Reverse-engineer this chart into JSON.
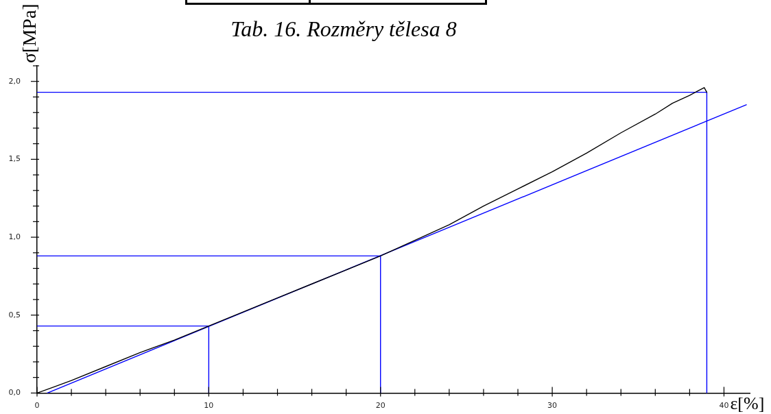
{
  "chart_data": {
    "type": "line",
    "ylabel": "σ[MPa]",
    "xlabel": "ε[%]",
    "annotations": [
      "Tab. 16. Rozměry tělesa 8"
    ],
    "xlim": [
      0,
      41.5
    ],
    "xticks": [
      0,
      {
        "value": 2,
        "label": null
      },
      {
        "value": 4,
        "label": null
      },
      {
        "value": 6,
        "label": null
      },
      {
        "value": 8,
        "label": null
      },
      10,
      {
        "value": 12,
        "label": null
      },
      {
        "value": 14,
        "label": null
      },
      {
        "value": 16,
        "label": null
      },
      {
        "value": 18,
        "label": null
      },
      20,
      {
        "value": 22,
        "label": null
      },
      {
        "value": 24,
        "label": null
      },
      {
        "value": 26,
        "label": null
      },
      {
        "value": 28,
        "label": null
      },
      30,
      {
        "value": 32,
        "label": null
      },
      {
        "value": 34,
        "label": null
      },
      {
        "value": 36,
        "label": null
      },
      {
        "value": 38,
        "label": null
      },
      40
    ],
    "ylim": [
      0,
      2.1
    ],
    "yticks": [
      {
        "value": 0,
        "label": "0,0"
      },
      {
        "value": 0.1,
        "label": null
      },
      {
        "value": 0.2,
        "label": null
      },
      {
        "value": 0.3,
        "label": null
      },
      {
        "value": 0.4,
        "label": null
      },
      {
        "value": 0.5,
        "label": "0,5"
      },
      {
        "value": 0.6,
        "label": null
      },
      {
        "value": 0.7,
        "label": null
      },
      {
        "value": 0.8,
        "label": null
      },
      {
        "value": 0.9,
        "label": null
      },
      {
        "value": 1,
        "label": "1,0"
      },
      {
        "value": 1.1,
        "label": null
      },
      {
        "value": 1.2,
        "label": null
      },
      {
        "value": 1.3,
        "label": null
      },
      {
        "value": 1.4,
        "label": null
      },
      {
        "value": 1.5,
        "label": "1,5"
      },
      {
        "value": 1.6,
        "label": null
      },
      {
        "value": 1.7,
        "label": null
      },
      {
        "value": 1.8,
        "label": null
      },
      {
        "value": 1.9,
        "label": null
      },
      {
        "value": 2,
        "label": "2,0"
      },
      {
        "value": 2.1,
        "label": null
      }
    ],
    "grid": false,
    "legend": false,
    "series": [
      {
        "color": "#000000",
        "x": [
          0,
          1,
          2,
          4,
          6,
          8,
          10,
          12,
          14,
          16,
          18,
          20,
          22,
          24,
          26,
          28,
          30,
          32,
          34,
          36,
          37,
          38,
          38.5,
          38.85,
          39
        ],
        "values": [
          0,
          0.04,
          0.08,
          0.17,
          0.26,
          0.34,
          0.43,
          0.52,
          0.61,
          0.7,
          0.79,
          0.88,
          0.98,
          1.08,
          1.2,
          1.31,
          1.42,
          1.54,
          1.67,
          1.79,
          1.86,
          1.91,
          1.94,
          1.96,
          1.93
        ]
      },
      {
        "color": "#0000ff",
        "x": [
          0.6,
          41.3
        ],
        "values": [
          0,
          1.85
        ]
      },
      {
        "color": "#0000ff",
        "x": [
          0,
          10,
          10
        ],
        "values": [
          0.43,
          0.43,
          0
        ]
      },
      {
        "color": "#0000ff",
        "x": [
          0,
          20,
          20
        ],
        "values": [
          0.88,
          0.88,
          0
        ]
      },
      {
        "color": "#0000ff",
        "x": [
          0,
          39,
          39
        ],
        "values": [
          1.93,
          1.93,
          0
        ]
      }
    ]
  }
}
